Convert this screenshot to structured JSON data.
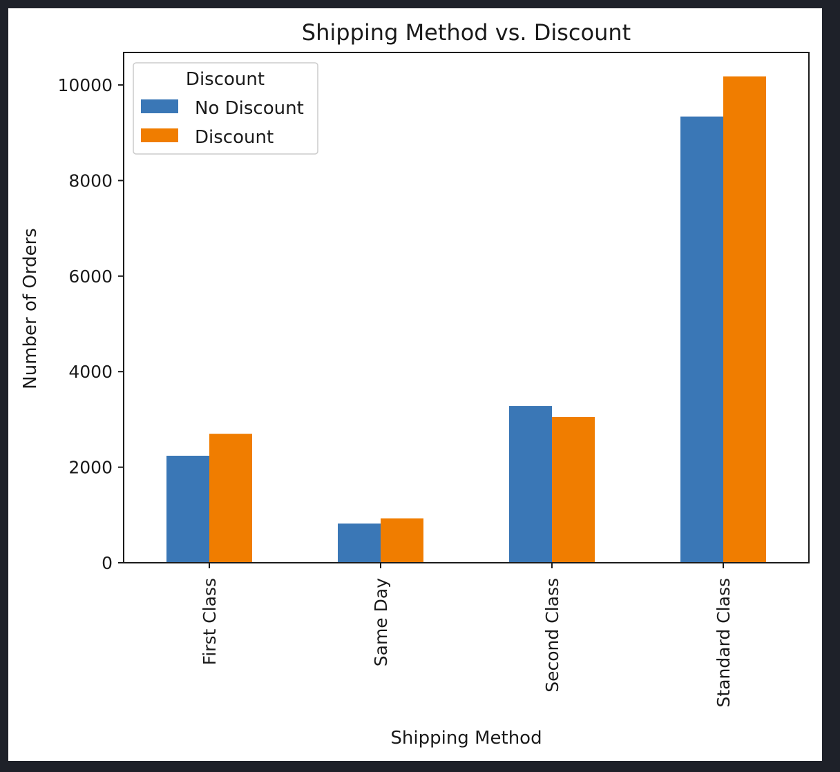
{
  "background_color": "#1e2129",
  "figure_color": "#ffffff",
  "chart_data": {
    "type": "bar",
    "title": "Shipping Method vs. Discount",
    "xlabel": "Shipping Method",
    "ylabel": "Number of Orders",
    "categories": [
      "First Class",
      "Same Day",
      "Second Class",
      "Standard Class"
    ],
    "series": [
      {
        "name": "No Discount",
        "color": "#3a77b6",
        "values": [
          2240,
          820,
          3280,
          9340
        ]
      },
      {
        "name": "Discount",
        "color": "#f07d00",
        "values": [
          2700,
          930,
          3050,
          10180
        ]
      }
    ],
    "ylim": [
      0,
      10680
    ],
    "yticks": [
      0,
      2000,
      4000,
      6000,
      8000,
      10000
    ],
    "yticklabels": [
      "0",
      "2000",
      "4000",
      "6000",
      "8000",
      "10000"
    ],
    "legend": {
      "title": "Discount",
      "placement": "top-left"
    },
    "grid": false
  }
}
